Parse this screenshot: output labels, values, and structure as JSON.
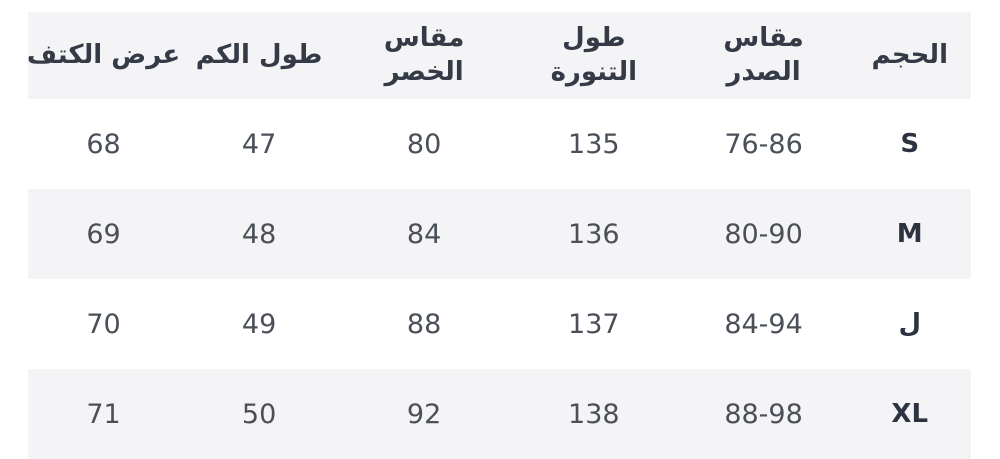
{
  "table": {
    "direction": "rtl",
    "stripe_color": "#f4f4f6",
    "header_text_color": "#343a46",
    "value_text_color": "#4b5058",
    "size_label_color": "#2d3340",
    "columns": [
      {
        "key": "size",
        "label": "الحجم",
        "lines": [
          "الحجم"
        ]
      },
      {
        "key": "chest",
        "label": "مقاس الصدر",
        "lines": [
          "مقاس",
          "الصدر"
        ]
      },
      {
        "key": "skirt",
        "label": "طول التنورة",
        "lines": [
          "طول",
          "التنورة"
        ]
      },
      {
        "key": "waist",
        "label": "مقاس الخصر",
        "lines": [
          "مقاس",
          "الخصر"
        ]
      },
      {
        "key": "sleeve",
        "label": "طول الكم",
        "lines": [
          "طول الكم"
        ]
      },
      {
        "key": "shoulder",
        "label": "عرض الكتف",
        "lines": [
          "عرض الكتف"
        ]
      }
    ],
    "rows": [
      {
        "size": "S",
        "chest": "76-86",
        "skirt": "135",
        "waist": "80",
        "sleeve": "47",
        "shoulder": "68"
      },
      {
        "size": "M",
        "chest": "80-90",
        "skirt": "136",
        "waist": "84",
        "sleeve": "48",
        "shoulder": "69"
      },
      {
        "size": "ل",
        "chest": "84-94",
        "skirt": "137",
        "waist": "88",
        "sleeve": "49",
        "shoulder": "70"
      },
      {
        "size": "XL",
        "chest": "88-98",
        "skirt": "138",
        "waist": "92",
        "sleeve": "50",
        "shoulder": "71"
      }
    ]
  },
  "chart_data": {
    "type": "table",
    "title": "",
    "direction": "rtl",
    "columns_rtl_order": [
      "الحجم",
      "مقاس الصدر",
      "طول التنورة",
      "مقاس الخصر",
      "طول الكم",
      "عرض الكتف"
    ],
    "rows": [
      [
        "S",
        "76-86",
        135,
        80,
        47,
        68
      ],
      [
        "M",
        "80-90",
        136,
        84,
        48,
        69
      ],
      [
        "ل",
        "84-94",
        137,
        88,
        49,
        70
      ],
      [
        "XL",
        "88-98",
        138,
        92,
        50,
        71
      ]
    ],
    "layout_hints": {
      "striped_rows": "header, row M, row XL shaded light gray",
      "alignment": "center"
    }
  }
}
